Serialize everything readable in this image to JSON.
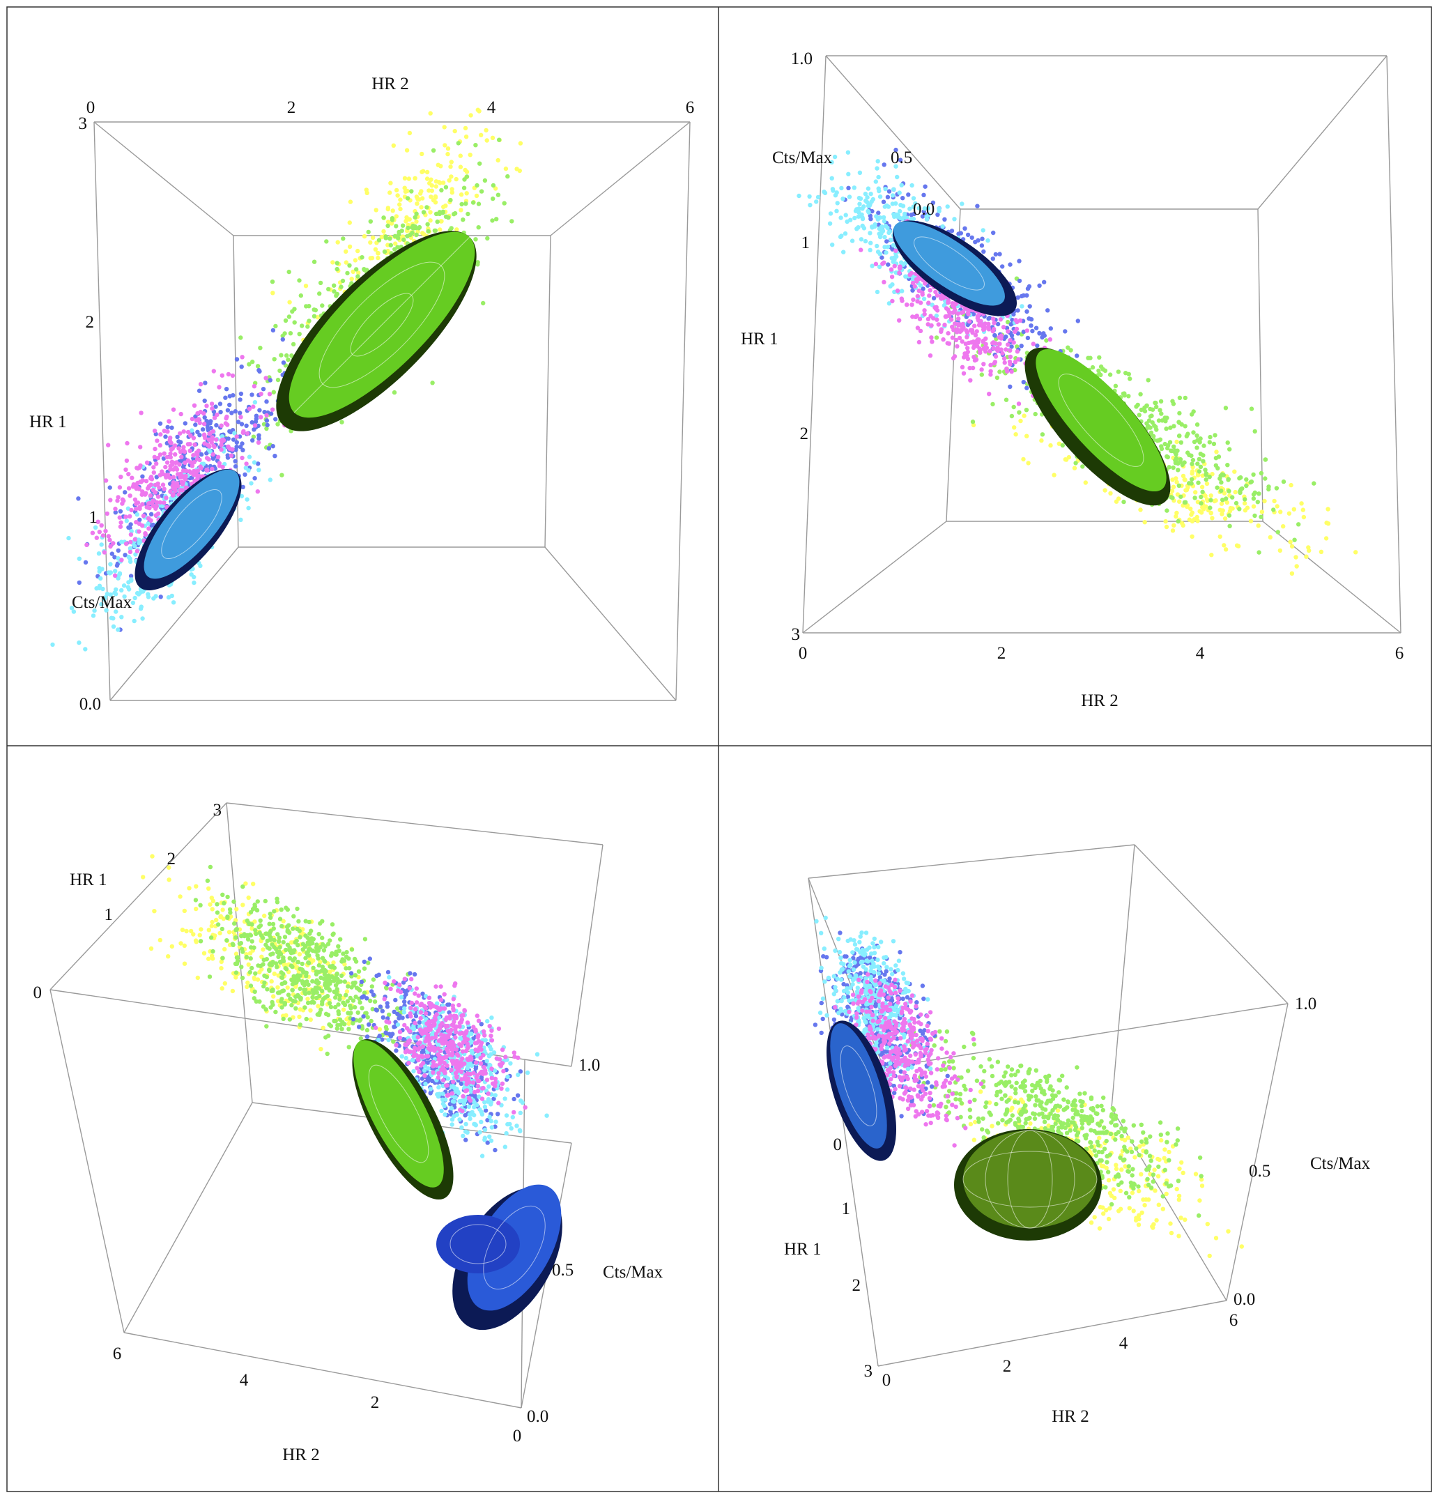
{
  "figure": {
    "colors": {
      "yellow": "#ffff66",
      "green": "#99ee66",
      "blue": "#6677ee",
      "cyan": "#88eeff",
      "magenta": "#ee77ee",
      "red": "#ee3344",
      "green_ellipsoid": "#66cc22",
      "blue_ellipsoid": "#2244cc",
      "axis_edge": "#9a9a9a",
      "frame": "#333333"
    }
  },
  "chart_data": [
    {
      "type": "scatter",
      "view": "top-left",
      "title": "",
      "axes": {
        "HR 2": {
          "label": "HR 2",
          "ticks": [
            "0",
            "2",
            "4",
            "6"
          ],
          "range": [
            0,
            6
          ]
        },
        "HR 1": {
          "label": "HR 1",
          "ticks": [
            "3",
            "2",
            "1"
          ],
          "range": [
            0,
            3
          ]
        },
        "Cts/Max": {
          "label": "Cts/Max",
          "ticks": [
            "0.0"
          ],
          "range": [
            0.0,
            1.0
          ]
        }
      },
      "series": [
        {
          "name": "yellow",
          "color": "yellow",
          "hr2": [
            2.4,
            4.2
          ],
          "hr1": [
            1.8,
            2.9
          ],
          "cts": [
            0.2,
            0.9
          ]
        },
        {
          "name": "green",
          "color": "green",
          "hr2": [
            1.8,
            4.2
          ],
          "hr1": [
            1.4,
            2.6
          ],
          "cts": [
            0.2,
            0.9
          ]
        },
        {
          "name": "blue",
          "color": "blue",
          "hr2": [
            0.3,
            2.0
          ],
          "hr1": [
            0.6,
            1.6
          ],
          "cts": [
            0.1,
            0.9
          ]
        },
        {
          "name": "cyan",
          "color": "cyan",
          "hr2": [
            0.1,
            1.6
          ],
          "hr1": [
            0.3,
            1.2
          ],
          "cts": [
            0.1,
            1.0
          ]
        },
        {
          "name": "magenta",
          "color": "magenta",
          "hr2": [
            0.3,
            1.6
          ],
          "hr1": [
            0.7,
            1.5
          ],
          "cts": [
            0.1,
            0.8
          ]
        }
      ]
    },
    {
      "type": "scatter",
      "view": "top-right",
      "title": "",
      "axes": {
        "HR 2": {
          "label": "HR 2",
          "ticks": [
            "0",
            "2",
            "4",
            "6"
          ],
          "range": [
            0,
            6
          ]
        },
        "HR 1": {
          "label": "HR 1",
          "ticks": [
            "1",
            "2",
            "3"
          ],
          "range": [
            0,
            3
          ]
        },
        "Cts/Max": {
          "label": "Cts/Max",
          "ticks": [
            "1.0",
            "0.5",
            "0.0"
          ],
          "range": [
            0.0,
            1.0
          ]
        }
      },
      "series": [
        {
          "name": "yellow",
          "color": "yellow",
          "hr2": [
            2.4,
            5.4
          ],
          "hr1": [
            2.0,
            2.7
          ],
          "cts": [
            0.2,
            0.9
          ]
        },
        {
          "name": "green",
          "color": "green",
          "hr2": [
            2.0,
            5.0
          ],
          "hr1": [
            1.5,
            2.5
          ],
          "cts": [
            0.2,
            0.9
          ]
        },
        {
          "name": "blue",
          "color": "blue",
          "hr2": [
            0.8,
            2.8
          ],
          "hr1": [
            0.6,
            1.6
          ],
          "cts": [
            0.1,
            0.9
          ]
        },
        {
          "name": "cyan",
          "color": "cyan",
          "hr2": [
            0.4,
            2.0
          ],
          "hr1": [
            0.5,
            1.3
          ],
          "cts": [
            0.1,
            1.0
          ]
        },
        {
          "name": "magenta",
          "color": "magenta",
          "hr2": [
            1.2,
            2.2
          ],
          "hr1": [
            0.9,
            1.6
          ],
          "cts": [
            0.1,
            0.8
          ]
        }
      ]
    },
    {
      "type": "scatter",
      "view": "bottom-left",
      "title": "",
      "axes": {
        "HR 2": {
          "label": "HR 2",
          "ticks": [
            "6",
            "4",
            "2",
            "0"
          ],
          "range": [
            0,
            6
          ]
        },
        "HR 1": {
          "label": "HR 1",
          "ticks": [
            "3",
            "2",
            "1",
            "0"
          ],
          "range": [
            0,
            3
          ]
        },
        "Cts/Max": {
          "label": "Cts/Max",
          "ticks": [
            "1.0",
            "0.5",
            "0.0"
          ],
          "range": [
            0.0,
            1.0
          ]
        }
      },
      "series": [
        {
          "name": "yellow",
          "color": "yellow",
          "hr2": [
            2.0,
            5.0
          ],
          "hr1": [
            1.5,
            2.8
          ],
          "cts": [
            0.2,
            0.9
          ]
        },
        {
          "name": "green",
          "color": "green",
          "hr2": [
            1.8,
            4.2
          ],
          "hr1": [
            1.4,
            2.6
          ],
          "cts": [
            0.2,
            0.9
          ]
        },
        {
          "name": "blue",
          "color": "blue",
          "hr2": [
            0.2,
            2.2
          ],
          "hr1": [
            0.5,
            1.6
          ],
          "cts": [
            0.1,
            0.9
          ]
        },
        {
          "name": "cyan",
          "color": "cyan",
          "hr2": [
            0.1,
            1.8
          ],
          "hr1": [
            0.4,
            1.3
          ],
          "cts": [
            0.1,
            1.0
          ]
        },
        {
          "name": "magenta",
          "color": "magenta",
          "hr2": [
            0.3,
            1.6
          ],
          "hr1": [
            0.8,
            1.6
          ],
          "cts": [
            0.1,
            0.8
          ]
        }
      ]
    },
    {
      "type": "scatter",
      "view": "bottom-right",
      "title": "",
      "axes": {
        "HR 2": {
          "label": "HR 2",
          "ticks": [
            "0",
            "2",
            "4",
            "6"
          ],
          "range": [
            0,
            6
          ]
        },
        "HR 1": {
          "label": "HR 1",
          "ticks": [
            "0",
            "1",
            "2",
            "3"
          ],
          "range": [
            0,
            3
          ]
        },
        "Cts/Max": {
          "label": "Cts/Max",
          "ticks": [
            "1.0",
            "0.5",
            "0.0"
          ],
          "range": [
            0.0,
            1.0
          ]
        }
      },
      "series": [
        {
          "name": "yellow",
          "color": "yellow",
          "hr2": [
            1.6,
            5.0
          ],
          "hr1": [
            1.8,
            2.9
          ],
          "cts": [
            0.2,
            0.9
          ]
        },
        {
          "name": "green",
          "color": "green",
          "hr2": [
            1.0,
            4.4
          ],
          "hr1": [
            1.2,
            2.4
          ],
          "cts": [
            0.2,
            0.9
          ]
        },
        {
          "name": "blue",
          "color": "blue",
          "hr2": [
            0.0,
            1.0
          ],
          "hr1": [
            0.0,
            1.2
          ],
          "cts": [
            0.1,
            0.9
          ]
        },
        {
          "name": "cyan",
          "color": "cyan",
          "hr2": [
            0.0,
            0.8
          ],
          "hr1": [
            0.0,
            1.0
          ],
          "cts": [
            0.1,
            1.0
          ]
        },
        {
          "name": "magenta",
          "color": "magenta",
          "hr2": [
            0.2,
            1.4
          ],
          "hr1": [
            0.3,
            1.4
          ],
          "cts": [
            0.1,
            0.8
          ]
        }
      ]
    }
  ]
}
